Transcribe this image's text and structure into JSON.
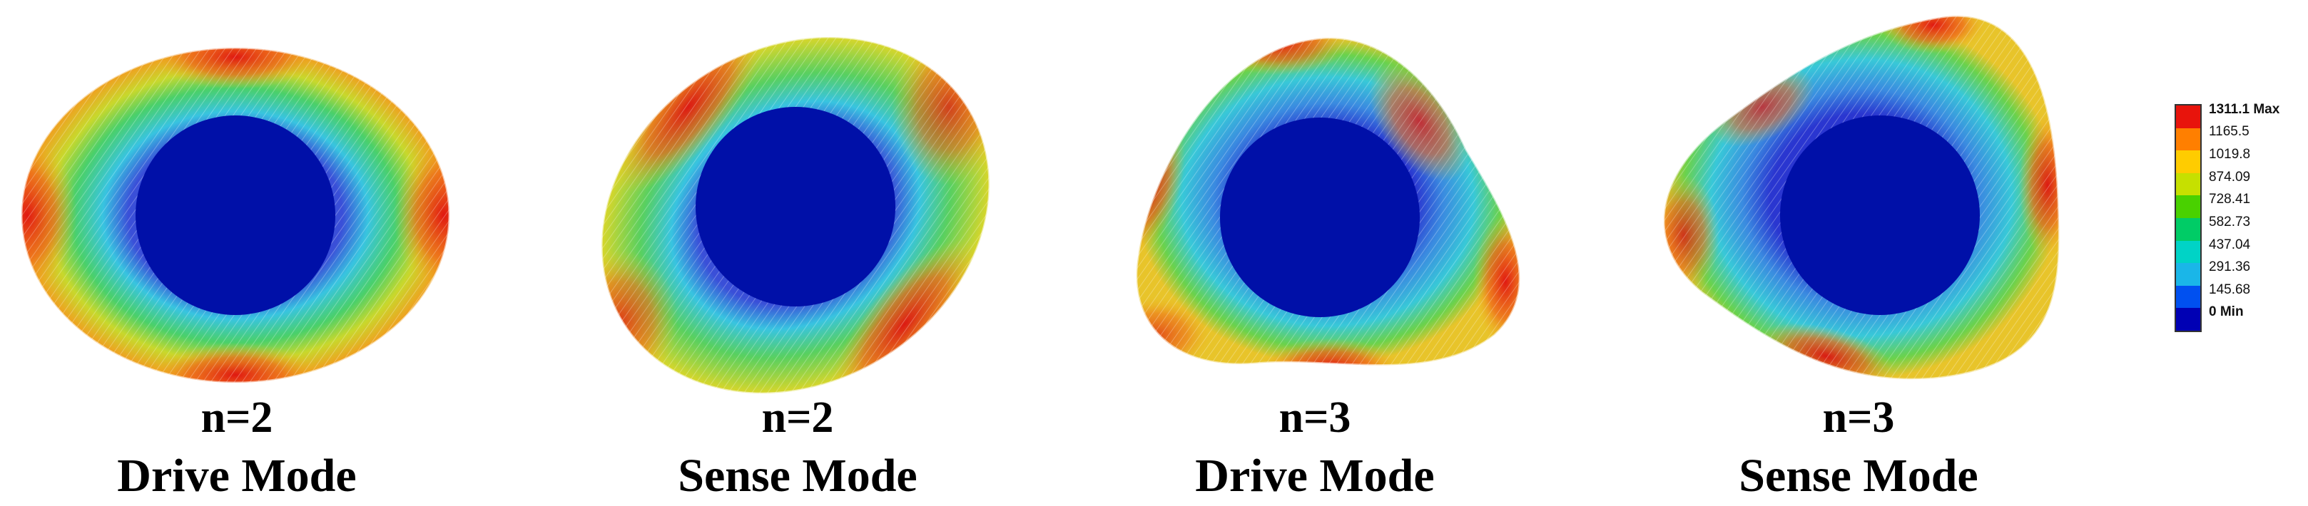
{
  "panels": [
    {
      "n_label": "n=2",
      "mode_label": "Drive Mode"
    },
    {
      "n_label": "n=2",
      "mode_label": "Sense Mode"
    },
    {
      "n_label": "n=3",
      "mode_label": "Drive Mode"
    },
    {
      "n_label": "n=3",
      "mode_label": "Sense Mode"
    }
  ],
  "legend": {
    "labels": [
      "1311.1 Max",
      "1165.5",
      "1019.8",
      "874.09",
      "728.41",
      "582.73",
      "437.04",
      "291.36",
      "145.68",
      "0 Min"
    ],
    "colors": [
      "#e8140c",
      "#ff7f00",
      "#ffcc00",
      "#c6e000",
      "#49d100",
      "#00cc66",
      "#00d3c6",
      "#1ab6e8",
      "#0050f0",
      "#0000b4"
    ]
  },
  "colormap": {
    "inner_disk": "#0010a8",
    "ramp": [
      "#1a2cc8",
      "#3a6adf",
      "#38c4e0",
      "#2ccf9e",
      "#6ad24c",
      "#d8d62a",
      "#f2a01e",
      "#e8341a"
    ]
  }
}
